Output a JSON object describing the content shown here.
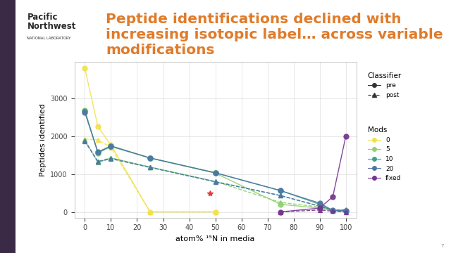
{
  "slide": {
    "title": "Peptide identifications declined with increasing isotopic label… across variable modifications",
    "logo_lines": [
      "Pacific",
      "Northwest"
    ],
    "logo_subtitle": "NATIONAL LABORATORY",
    "page": "7"
  },
  "chart_data": {
    "type": "line",
    "x_label": "atom% ¹⁵N in media",
    "y_label": "Peptides identified",
    "x": [
      0,
      5,
      10,
      25,
      50,
      75,
      90,
      95,
      100
    ],
    "xlim": [
      -4,
      104
    ],
    "xticks": [
      0,
      10,
      20,
      30,
      40,
      50,
      60,
      70,
      80,
      90,
      100
    ],
    "ylim": [
      -150,
      3950
    ],
    "yticks": [
      0,
      1000,
      2000,
      3000
    ],
    "grid": true,
    "legend": "right",
    "legends": [
      {
        "title": "Classifier",
        "entries": [
          {
            "name": "pre",
            "marker": "circle",
            "line_style": "solid"
          },
          {
            "name": "post",
            "marker": "triangle",
            "line_style": "dashed"
          }
        ]
      },
      {
        "title": "Mods",
        "entries": [
          {
            "name": "0",
            "color": "#f2e14c"
          },
          {
            "name": "5",
            "color": "#8fd16f"
          },
          {
            "name": "10",
            "color": "#3aa38c"
          },
          {
            "name": "20",
            "color": "#4f76a3"
          },
          {
            "name": "fixed",
            "color": "#74358f"
          }
        ]
      }
    ],
    "series": [
      {
        "mods": "0",
        "classifier": "pre",
        "values": [
          3780,
          2250,
          1760,
          0,
          0,
          null,
          null,
          null,
          null
        ]
      },
      {
        "mods": "0",
        "classifier": "post",
        "values": [
          1920,
          1900,
          1700,
          0,
          0,
          null,
          null,
          null,
          null
        ]
      },
      {
        "mods": "5",
        "classifier": "pre",
        "values": [
          2680,
          1550,
          1720,
          1420,
          1020,
          200,
          100,
          30,
          20
        ]
      },
      {
        "mods": "5",
        "classifier": "post",
        "values": [
          1900,
          1300,
          1420,
          1180,
          800,
          250,
          130,
          50,
          50
        ]
      },
      {
        "mods": "10",
        "classifier": "pre",
        "values": [
          2650,
          1560,
          1730,
          1420,
          1030,
          560,
          200,
          30,
          20
        ]
      },
      {
        "mods": "10",
        "classifier": "post",
        "values": [
          1880,
          1330,
          1420,
          1180,
          800,
          430,
          150,
          40,
          60
        ]
      },
      {
        "mods": "20",
        "classifier": "pre",
        "values": [
          2620,
          1580,
          1740,
          1420,
          1030,
          560,
          230,
          40,
          30
        ]
      },
      {
        "mods": "20",
        "classifier": "post",
        "values": [
          1860,
          1320,
          1400,
          1170,
          790,
          430,
          150,
          40,
          50
        ]
      },
      {
        "mods": "fixed",
        "classifier": "pre",
        "values": [
          null,
          null,
          null,
          null,
          null,
          0,
          100,
          400,
          2000
        ]
      },
      {
        "mods": "fixed",
        "classifier": "post",
        "values": [
          null,
          null,
          null,
          null,
          null,
          0,
          50,
          20,
          0
        ]
      }
    ],
    "points": [
      {
        "x": 48,
        "y": 500,
        "marker": "asterisk",
        "color": "#e8383d"
      }
    ]
  }
}
